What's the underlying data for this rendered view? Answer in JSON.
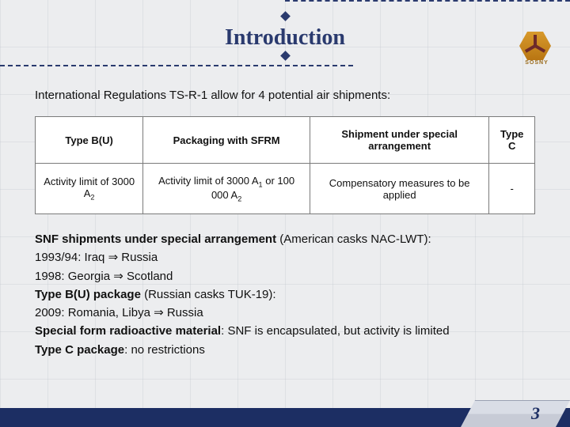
{
  "title": "Introduction",
  "logo_label": "SOSNY",
  "intro": "International Regulations TS-R-1 allow for 4 potential air shipments:",
  "table": {
    "headers": {
      "c0": "Type B(U)",
      "c1": "Packaging with SFRM",
      "c2": "Shipment under special arrangement",
      "c3": "Type C"
    },
    "row": {
      "c0_pre": "Activity limit of 3000 A",
      "c0_sub": "2",
      "c1_pre": "Activity limit of 3000 A",
      "c1_sub1": "1",
      "c1_mid": " or 100 000 A",
      "c1_sub2": "2",
      "c2": "Compensatory measures to be applied",
      "c3": "-"
    }
  },
  "bullets": {
    "l1_b": "SNF shipments under special arrangement",
    "l1_r": " (American casks NAC-LWT):",
    "l2": "1993/94: Iraq ⇒ Russia",
    "l3": "1998: Georgia ⇒ Scotland",
    "l4_b": "Type B(U) package",
    "l4_r": " (Russian casks TUK-19):",
    "l5": "2009: Romania, Libya ⇒ Russia",
    "l6_b": "Special form radioactive material",
    "l6_r": ": SNF is encapsulated, but activity is limited",
    "l7_b": "Type C package",
    "l7_r": ": no restrictions"
  },
  "page_number": "3",
  "colors": {
    "brand_navy": "#1c2e63",
    "title_navy": "#2a3a6e",
    "bg": "#ecedef",
    "logo_gold": "#d89a2c"
  }
}
